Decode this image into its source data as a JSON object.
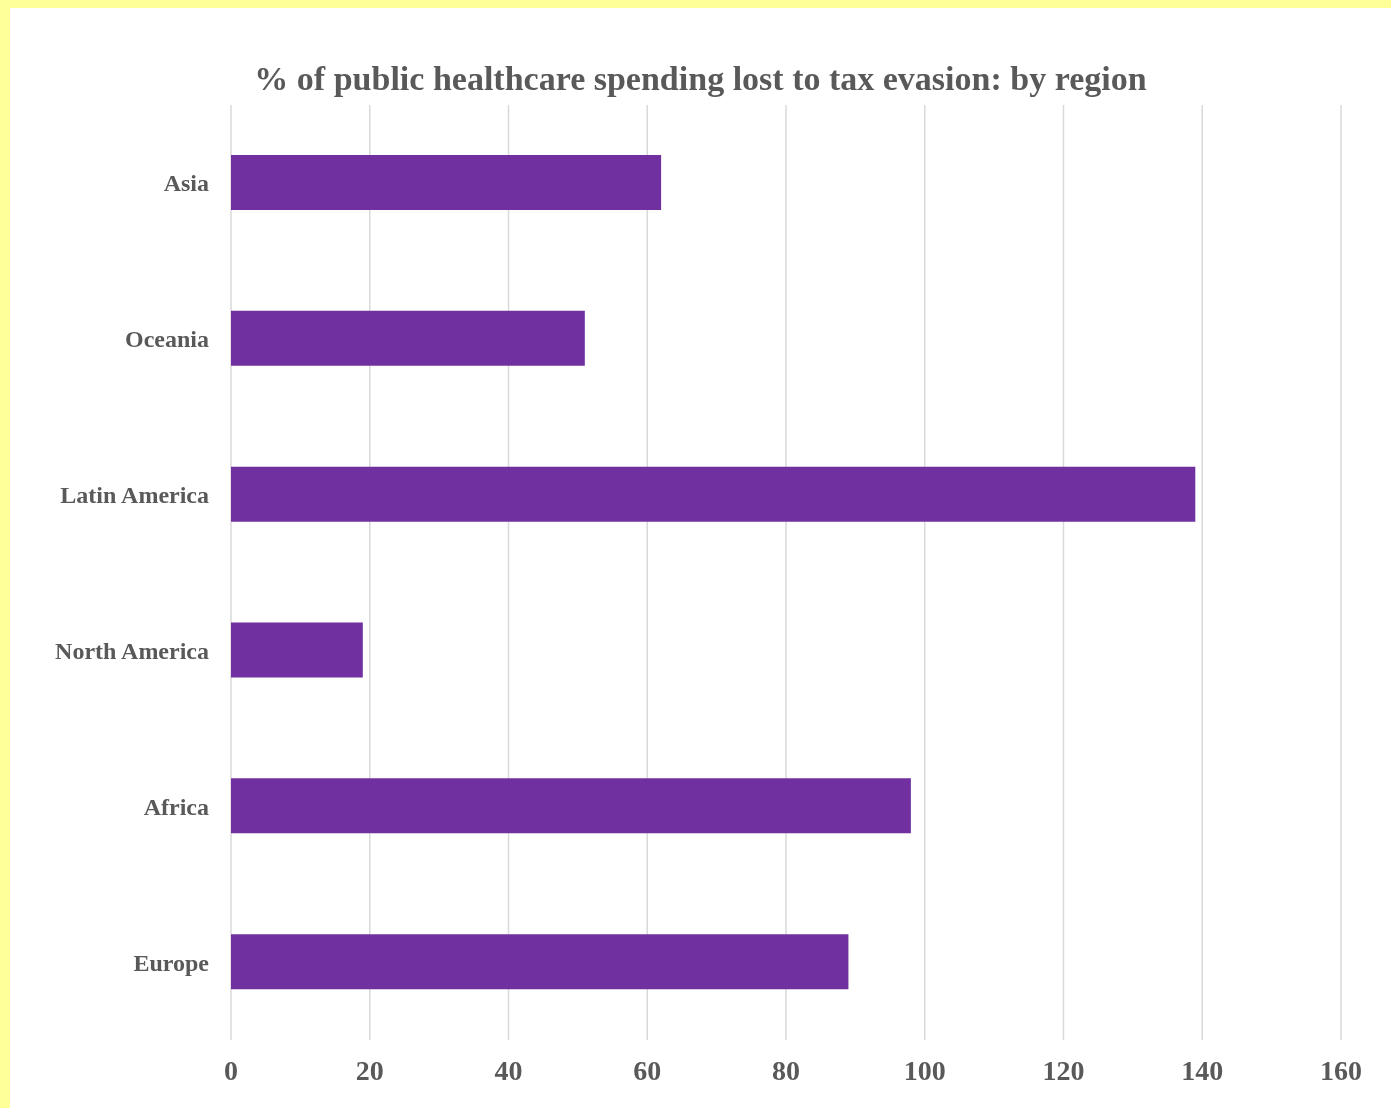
{
  "chart_data": {
    "type": "bar",
    "orientation": "horizontal",
    "title": "% of public healthcare spending lost to tax evasion: by region",
    "categories": [
      "Asia",
      "Oceania",
      "Latin America",
      "North America",
      "Africa",
      "Europe"
    ],
    "values": [
      62,
      51,
      139,
      19,
      98,
      89
    ],
    "color": "#7030a0",
    "xlim": [
      0,
      160
    ],
    "xticks": [
      0,
      20,
      40,
      60,
      80,
      100,
      120,
      140,
      160
    ],
    "grid": "x"
  }
}
